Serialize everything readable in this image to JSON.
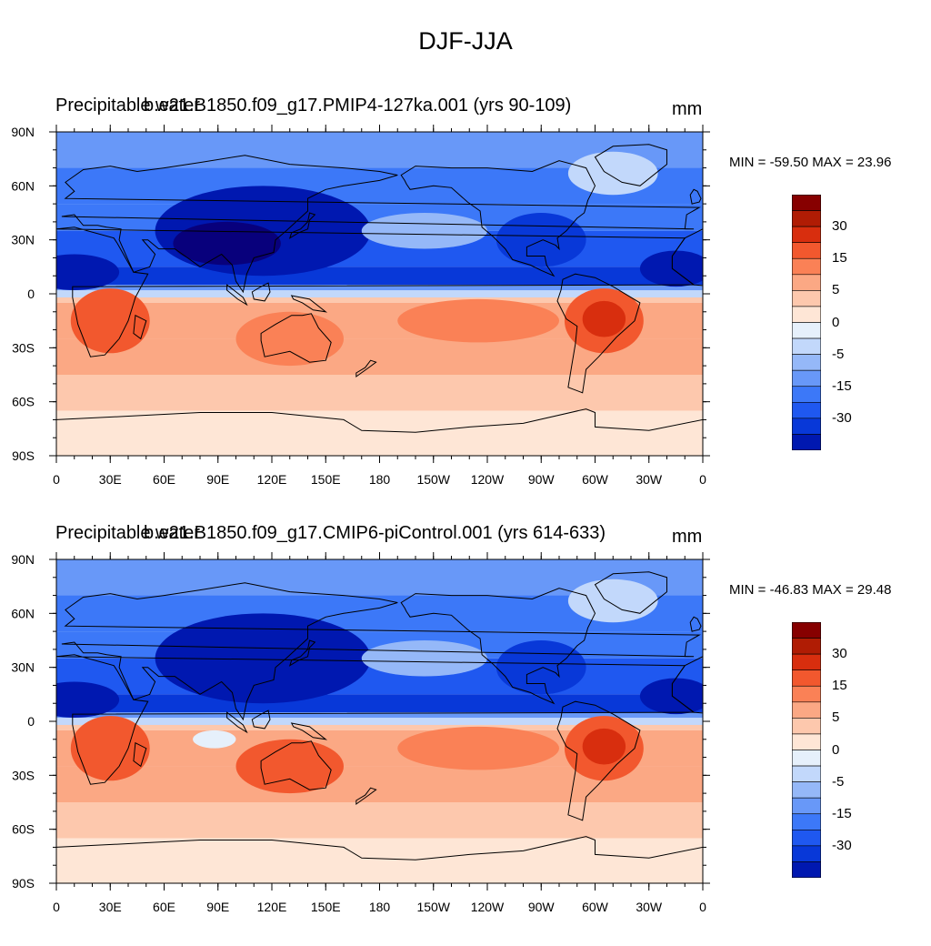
{
  "figure_title": "DJF-JJA",
  "colors": {
    "palette": [
      "#08007c",
      "#0018b0",
      "#0838d8",
      "#1f58f0",
      "#3c78f8",
      "#6898f8",
      "#95b8f8",
      "#c2d8fb",
      "#e6f0fb",
      "#fee6d6",
      "#fdc8ad",
      "#fba884",
      "#fa8156",
      "#f2582e",
      "#d82e0e",
      "#b01c04",
      "#870000"
    ]
  },
  "colorbar_labels": [
    "30",
    "15",
    "5",
    "0",
    "-5",
    "-15",
    "-30"
  ],
  "x_tick_labels": [
    "0",
    "30E",
    "60E",
    "90E",
    "120E",
    "150E",
    "180",
    "150W",
    "120W",
    "90W",
    "60W",
    "30W",
    "0"
  ],
  "y_tick_labels": [
    "90N",
    "60N",
    "30N",
    "0",
    "30S",
    "60S",
    "90S"
  ],
  "panels": [
    {
      "left_title": "Precipitable water",
      "case_title": "b.e21.B1850.f09_g17.PMIP4-127ka.001 (yrs 90-109)",
      "units": "mm",
      "minmax": "MIN = -59.50 MAX =  23.96",
      "min": -59.5,
      "max": 23.96
    },
    {
      "left_title": "Precipitable water",
      "case_title": "b.e21.B1850.f09_g17.CMIP6-piControl.001 (yrs 614-633)",
      "units": "mm",
      "minmax": "MIN = -46.83 MAX =  29.48",
      "min": -46.83,
      "max": 29.48
    }
  ]
}
